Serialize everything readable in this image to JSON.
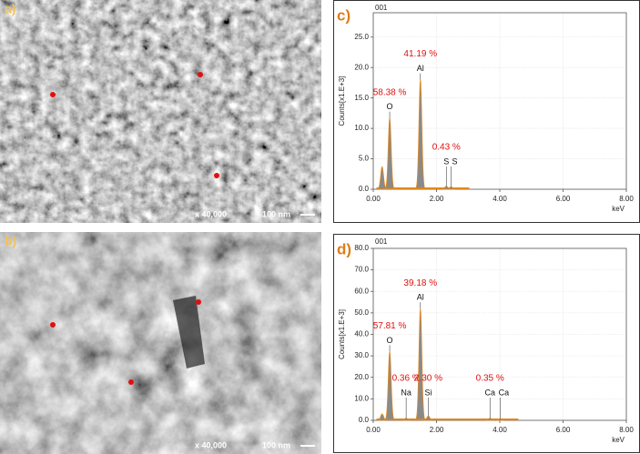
{
  "images": [
    {
      "label": "a)",
      "magnification": "x 40,000",
      "scale": "100 nm"
    },
    {
      "label": "b)",
      "magnification": "x 40,000",
      "scale": "100 nm"
    }
  ],
  "chart_data": [
    {
      "type": "spectrum",
      "label": "c)",
      "title": "001",
      "ylabel": "Counts[x1.E+3]",
      "xlabel": "keV",
      "x": [
        0.28,
        0.52,
        1.49,
        2.31,
        2.46
      ],
      "values": [
        3.7,
        11.7,
        18,
        0.5,
        0.4
      ],
      "peak_labels": [
        null,
        "O",
        "Al",
        "S",
        "S"
      ],
      "compositions": [
        null,
        "58.38 %",
        "41.19 %",
        "0.43 %",
        null
      ],
      "color": "#e0871c",
      "fill_color": "#8a8a8a",
      "grid": true,
      "xlim": [
        0,
        8
      ],
      "ylim": [
        0,
        29
      ],
      "xticks": [
        {
          "value": 0,
          "label": "0.00"
        },
        {
          "value": 2,
          "label": "2.00"
        },
        {
          "value": 4,
          "label": "4.00"
        },
        {
          "value": 6,
          "label": "6.00"
        },
        {
          "value": 8,
          "label": "8.00"
        }
      ],
      "yticks": [
        {
          "value": 0,
          "label": "0.0"
        },
        {
          "value": 5,
          "label": "5.0"
        },
        {
          "value": 10,
          "label": "10.0"
        },
        {
          "value": 15,
          "label": "15.0"
        },
        {
          "value": 20,
          "label": "20.0"
        },
        {
          "value": 25,
          "label": "25.0"
        }
      ]
    },
    {
      "type": "spectrum",
      "label": "d)",
      "title": "001",
      "ylabel": "Counts[x1.E+3]",
      "xlabel": "keV",
      "x": [
        0.28,
        0.52,
        1.04,
        1.49,
        1.74,
        3.69,
        4.01
      ],
      "values": [
        3,
        32,
        1,
        52,
        2,
        1,
        0.5
      ],
      "peak_labels": [
        null,
        "O",
        "Na",
        "Al",
        "Si",
        "Ca",
        "Ca"
      ],
      "compositions": [
        null,
        "57.81 %",
        "0.36 %",
        "39.18 %",
        "2.30 %",
        "0.35 %",
        null
      ],
      "color": "#e0871c",
      "fill_color": "#8a8a8a",
      "grid": true,
      "xlim": [
        0,
        8
      ],
      "ylim": [
        0,
        80
      ],
      "xticks": [
        {
          "value": 0,
          "label": "0.00"
        },
        {
          "value": 2,
          "label": "2.00"
        },
        {
          "value": 4,
          "label": "4.00"
        },
        {
          "value": 6,
          "label": "6.00"
        },
        {
          "value": 8,
          "label": "8.00"
        }
      ],
      "yticks": [
        {
          "value": 0,
          "label": "0.0"
        },
        {
          "value": 10,
          "label": "10.0"
        },
        {
          "value": 20,
          "label": "20.0"
        },
        {
          "value": 30,
          "label": "30.0"
        },
        {
          "value": 40,
          "label": "40.0"
        },
        {
          "value": 50,
          "label": "50.0"
        },
        {
          "value": 60,
          "label": "60.0"
        },
        {
          "value": 70,
          "label": "70.0"
        },
        {
          "value": 80,
          "label": "80.0"
        }
      ]
    }
  ]
}
